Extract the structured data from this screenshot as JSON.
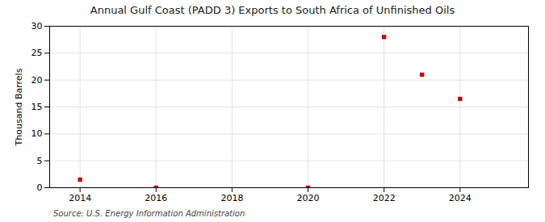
{
  "chart_data": {
    "type": "scatter",
    "title": "Annual Gulf Coast (PADD 3) Exports to South Africa of Unfinished Oils",
    "ylabel": "Thousand Barrels",
    "source": "Source: U.S. Energy Information Administration",
    "x": [
      2014,
      2016,
      2020,
      2022,
      2023,
      2024
    ],
    "values": [
      1.5,
      0.0,
      0.0,
      28.0,
      21.0,
      16.5
    ],
    "color": "#cc0000",
    "marker": "square",
    "xlim": [
      2013.2,
      2025.8
    ],
    "ylim": [
      0,
      30
    ],
    "xticks": [
      2014,
      2016,
      2018,
      2020,
      2022,
      2024
    ],
    "yticks": [
      0,
      5,
      10,
      15,
      20,
      25,
      30
    ],
    "grid": true
  }
}
